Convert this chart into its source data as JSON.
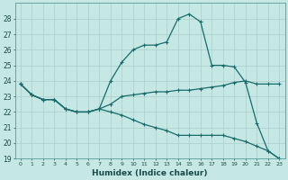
{
  "xlabel": "Humidex (Indice chaleur)",
  "background_color": "#c5e8e5",
  "grid_color": "#aacfcc",
  "line_color": "#1a6b6b",
  "xlim": [
    -0.5,
    23.5
  ],
  "ylim": [
    19,
    29
  ],
  "yticks": [
    19,
    20,
    21,
    22,
    23,
    24,
    25,
    26,
    27,
    28
  ],
  "xticks": [
    0,
    1,
    2,
    3,
    4,
    5,
    6,
    7,
    8,
    9,
    10,
    11,
    12,
    13,
    14,
    15,
    16,
    17,
    18,
    19,
    20,
    21,
    22,
    23
  ],
  "line_upper_x": [
    0,
    1,
    2,
    3,
    4,
    5,
    6,
    7,
    8,
    9,
    10,
    11,
    12,
    13,
    14,
    15,
    16,
    17,
    18,
    19,
    20,
    21,
    22,
    23
  ],
  "line_upper_y": [
    23.8,
    23.1,
    22.8,
    22.8,
    22.2,
    22.0,
    22.0,
    22.2,
    24.0,
    25.2,
    26.0,
    26.3,
    26.3,
    26.5,
    28.0,
    28.3,
    27.8,
    25.0,
    25.0,
    24.9,
    23.9,
    21.3,
    19.5,
    19.0
  ],
  "line_mid_x": [
    0,
    1,
    2,
    3,
    4,
    5,
    6,
    7,
    8,
    9,
    10,
    11,
    12,
    13,
    14,
    15,
    16,
    17,
    18,
    19,
    20,
    21,
    22,
    23
  ],
  "line_mid_y": [
    23.8,
    23.1,
    22.8,
    22.8,
    22.2,
    22.0,
    22.0,
    22.2,
    22.5,
    23.0,
    23.1,
    23.2,
    23.3,
    23.3,
    23.4,
    23.4,
    23.5,
    23.6,
    23.7,
    23.9,
    24.0,
    23.8,
    23.8,
    23.8
  ],
  "line_lower_x": [
    0,
    1,
    2,
    3,
    4,
    5,
    6,
    7,
    8,
    9,
    10,
    11,
    12,
    13,
    14,
    15,
    16,
    17,
    18,
    19,
    20,
    21,
    22,
    23
  ],
  "line_lower_y": [
    23.8,
    23.1,
    22.8,
    22.8,
    22.2,
    22.0,
    22.0,
    22.2,
    22.0,
    21.8,
    21.5,
    21.2,
    21.0,
    20.8,
    20.5,
    20.5,
    20.5,
    20.5,
    20.5,
    20.3,
    20.1,
    19.8,
    19.5,
    19.0
  ]
}
